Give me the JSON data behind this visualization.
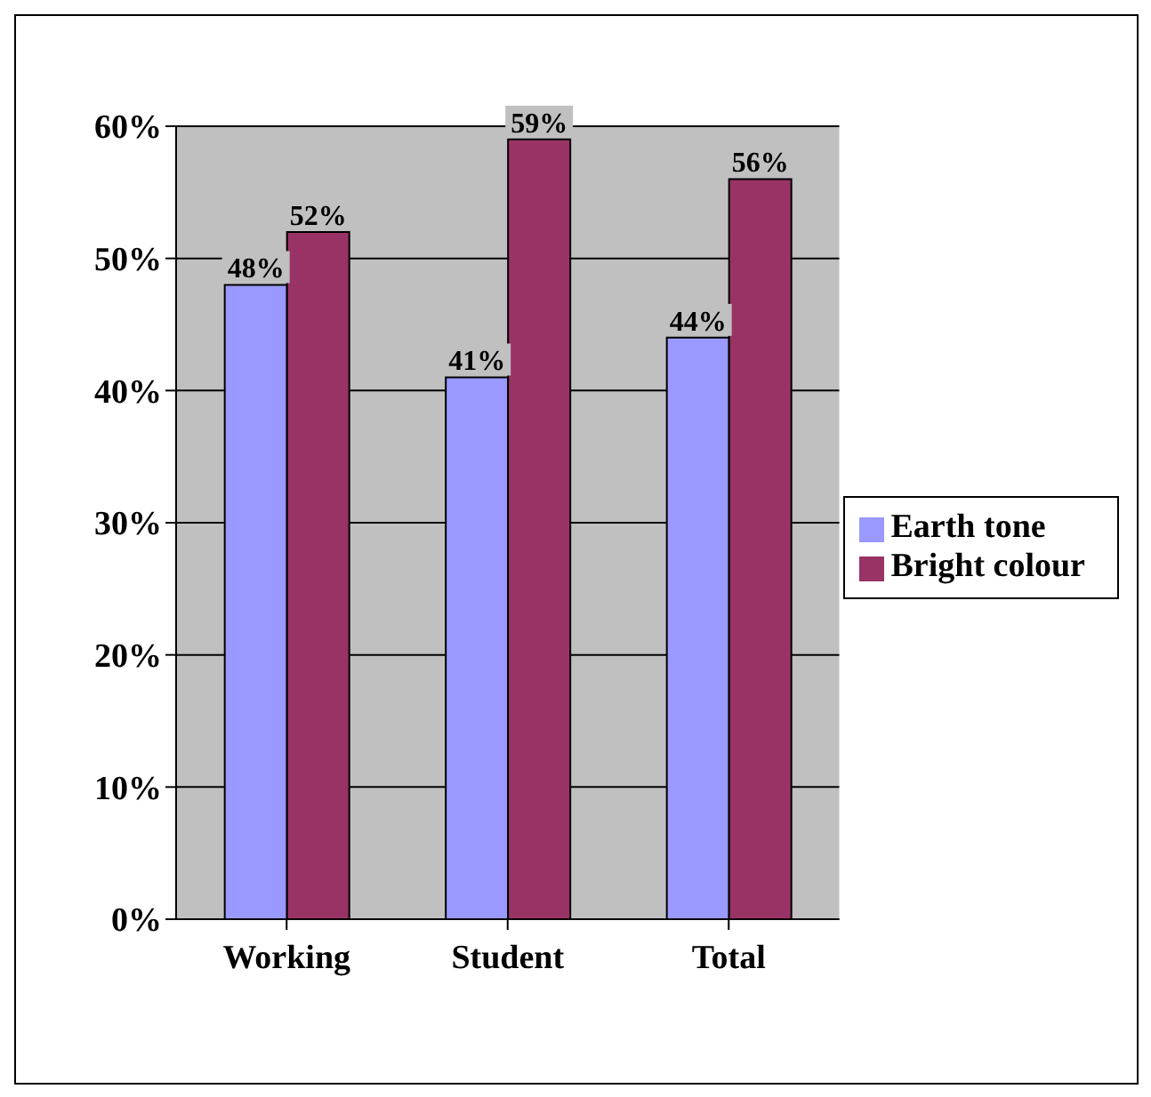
{
  "chart_data": {
    "type": "bar",
    "categories": [
      "Working",
      "Student",
      "Total"
    ],
    "series": [
      {
        "name": "Earth tone",
        "color": "#9999ff",
        "values": [
          48,
          41,
          44
        ],
        "value_labels": [
          "48%",
          "41%",
          "44%"
        ]
      },
      {
        "name": "Bright colour",
        "color": "#993366",
        "values": [
          52,
          59,
          56
        ],
        "value_labels": [
          "52%",
          "59%",
          "56%"
        ]
      }
    ],
    "ylim": [
      0,
      60
    ],
    "yticks": [
      {
        "value": 0,
        "label": "0%"
      },
      {
        "value": 10,
        "label": "10%"
      },
      {
        "value": 20,
        "label": "20%"
      },
      {
        "value": 30,
        "label": "30%"
      },
      {
        "value": 40,
        "label": "40%"
      },
      {
        "value": 50,
        "label": "50%"
      },
      {
        "value": 60,
        "label": "60%"
      }
    ],
    "grid": "y",
    "legend": "right"
  }
}
